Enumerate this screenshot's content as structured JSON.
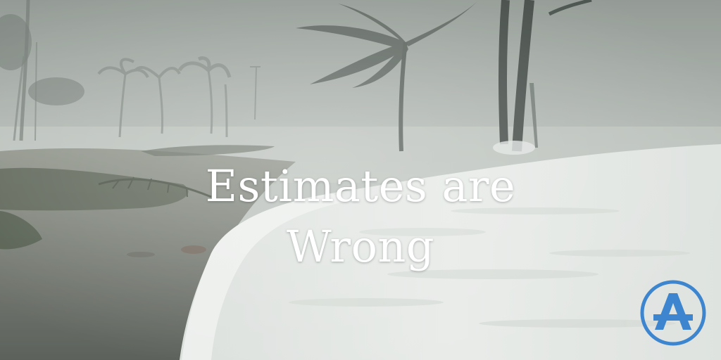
{
  "headline": {
    "line1": "Estimates are",
    "line2": "Wrong"
  },
  "logo": {
    "icon": "letter-a-circle-logo",
    "color": "#3d86cf"
  },
  "palette": {
    "fog": "#b9bfbb",
    "foam": "#e9ecea",
    "ground": "#6b6f66",
    "palm": "#3c4440"
  }
}
